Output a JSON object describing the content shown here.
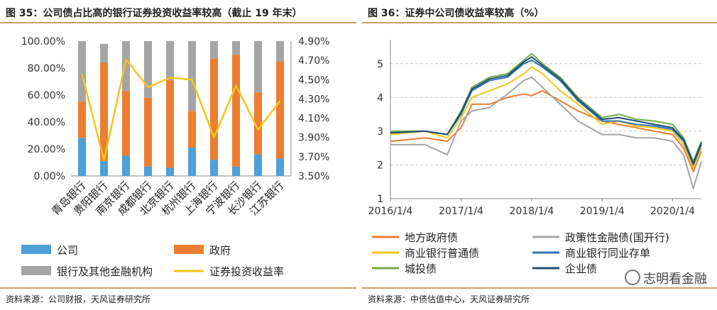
{
  "left": {
    "title": "图 35：公司债占比高的银行证券投资收益率较高（截止 19 年末）",
    "source": "资料来源：公司财报，天风证券研究所",
    "chart_data": {
      "type": "bar",
      "categories": [
        "青岛银行",
        "贵阳银行",
        "南京银行",
        "成都银行",
        "北京银行",
        "杭州银行",
        "上海银行",
        "宁波银行",
        "长沙银行",
        "江苏银行"
      ],
      "series": [
        {
          "name": "公司",
          "values": [
            28,
            11,
            15,
            7,
            6,
            21,
            12,
            7,
            16,
            13
          ],
          "color": "#4f9fd8"
        },
        {
          "name": "政府",
          "values": [
            27,
            73,
            48,
            51,
            65,
            27,
            75,
            83,
            46,
            72
          ],
          "color": "#ed7d31"
        },
        {
          "name": "银行及其他金融机构",
          "values": [
            45,
            14,
            37,
            42,
            29,
            52,
            13,
            10,
            38,
            15
          ],
          "color": "#a5a5a5"
        }
      ],
      "line": {
        "name": "证券投资收益率",
        "values": [
          4.56,
          3.66,
          4.71,
          4.42,
          4.52,
          4.5,
          3.9,
          4.44,
          3.98,
          4.28
        ],
        "color": "#f5c518"
      },
      "ylim": [
        0,
        100
      ],
      "y2lim": [
        3.5,
        4.9
      ],
      "yticks": [
        "0.00%",
        "20.00%",
        "40.00%",
        "60.00%",
        "80.00%",
        "100.00%"
      ],
      "y2ticks": [
        "3.50%",
        "3.70%",
        "3.90%",
        "4.10%",
        "4.30%",
        "4.50%",
        "4.70%",
        "4.90%"
      ],
      "legend": [
        "公司",
        "政府",
        "银行及其他金融机构",
        "证券投资收益率"
      ]
    }
  },
  "right": {
    "title": "图 36：证券中公司债收益率较高（%）",
    "source": "资料来源：中债估值中心，天风证券研究所",
    "watermark": "志明看金融",
    "chart_data": {
      "type": "line",
      "xticks": [
        "2016/1/4",
        "2017/1/4",
        "2018/1/4",
        "2019/1/4",
        "2020/1/4"
      ],
      "yticks": [
        "1",
        "2",
        "3",
        "4",
        "5"
      ],
      "ylim": [
        1,
        5.5
      ],
      "grid": true,
      "x_dates": [
        "2016/1/4",
        "2016/7/1",
        "2016/10/24",
        "2017/1/4",
        "2017/3/1",
        "2017/6/1",
        "2017/9/1",
        "2017/11/24",
        "2018/1/4",
        "2018/3/1",
        "2018/6/1",
        "2018/9/1",
        "2019/1/4",
        "2019/4/1",
        "2019/7/1",
        "2019/10/1",
        "2020/1/4",
        "2020/3/1",
        "2020/4/20",
        "2020/6/1"
      ],
      "series": [
        {
          "name": "地方政府债",
          "color": "#ed7d31",
          "values": [
            2.7,
            2.8,
            2.7,
            3.1,
            3.8,
            3.8,
            4.0,
            4.1,
            4.05,
            4.2,
            3.9,
            3.6,
            3.3,
            3.2,
            3.1,
            3.0,
            2.9,
            2.5,
            1.8,
            2.4
          ]
        },
        {
          "name": "政策性金融债(国开行)",
          "color": "#a5a5a5",
          "values": [
            2.6,
            2.6,
            2.3,
            3.3,
            3.6,
            3.7,
            4.1,
            4.5,
            4.6,
            4.3,
            3.8,
            3.3,
            2.9,
            2.9,
            2.8,
            2.8,
            2.7,
            2.3,
            1.3,
            2.1
          ]
        },
        {
          "name": "商业银行普通债",
          "color": "#f5c518",
          "values": [
            2.9,
            3.0,
            2.8,
            3.4,
            4.0,
            4.2,
            4.4,
            4.7,
            4.9,
            4.7,
            4.2,
            3.8,
            3.2,
            3.3,
            3.15,
            3.1,
            3.0,
            2.6,
            1.9,
            2.5
          ]
        },
        {
          "name": "商业银行同业存单",
          "color": "#2e75b6",
          "values": [
            2.95,
            3.0,
            2.9,
            3.5,
            4.2,
            4.5,
            4.6,
            5.0,
            5.1,
            4.9,
            4.5,
            3.9,
            3.3,
            3.3,
            3.2,
            3.15,
            3.05,
            2.7,
            2.0,
            2.6
          ]
        },
        {
          "name": "城投债",
          "color": "#70ad47",
          "values": [
            3.0,
            3.0,
            2.9,
            3.6,
            4.3,
            4.6,
            4.7,
            5.1,
            5.3,
            5.0,
            4.6,
            4.0,
            3.4,
            3.5,
            3.35,
            3.3,
            3.2,
            2.8,
            2.1,
            2.7
          ]
        },
        {
          "name": "企业债",
          "color": "#1f4e79",
          "values": [
            2.95,
            3.0,
            2.9,
            3.55,
            4.25,
            4.55,
            4.65,
            5.05,
            5.2,
            4.95,
            4.55,
            3.95,
            3.35,
            3.4,
            3.3,
            3.2,
            3.1,
            2.75,
            2.05,
            2.65
          ]
        }
      ],
      "legend": [
        "地方政府债",
        "政策性金融债(国开行)",
        "商业银行普通债",
        "商业银行同业存单",
        "城投债",
        "企业债"
      ]
    }
  }
}
